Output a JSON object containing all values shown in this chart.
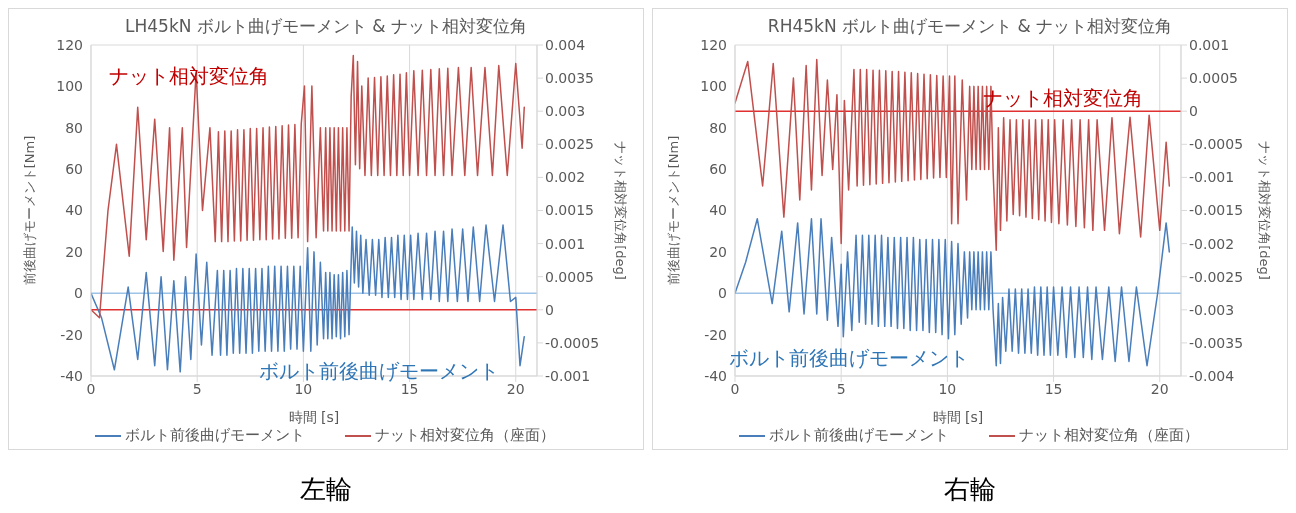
{
  "chart_data": [
    {
      "type": "line",
      "title": "LH45kN ボルト曲げモーメント & ナット相対変位角",
      "xlabel": "時間 [s]",
      "ylabel": "前後曲げモーメント[Nm]",
      "y2label": "ナット相対変位角[deg]",
      "xlim": [
        0,
        21
      ],
      "xticks": [
        0,
        5,
        10,
        15,
        20
      ],
      "ylim": [
        -40,
        120
      ],
      "yticks": [
        -40,
        -20,
        0,
        20,
        40,
        60,
        80,
        100,
        120
      ],
      "y2lim": [
        -0.001,
        0.004
      ],
      "y2ticks": [
        -0.001,
        -0.0005,
        0,
        0.0005,
        0.001,
        0.0015,
        0.002,
        0.0025,
        0.003,
        0.0035,
        0.004
      ],
      "grid": true,
      "legend": "bottom",
      "marker": "none",
      "line_style": "solid",
      "ref_lines": [
        {
          "axis": "y",
          "value": 0,
          "color": "#9dc3e6"
        },
        {
          "axis": "y2",
          "value": 0,
          "color": "#e03030"
        }
      ],
      "annotations": [
        "ナット相対変位角",
        "ボルト前後曲げモーメント",
        "左輪"
      ],
      "series": [
        {
          "name": "ボルト前後曲げモーメント",
          "color": "#4a7ebb",
          "x": [
            0,
            0.5,
            1.1,
            1.75,
            2.2,
            2.6,
            3.0,
            3.3,
            3.6,
            3.9,
            4.2,
            4.45,
            4.7,
            4.95,
            5.2,
            5.45,
            5.7,
            5.95,
            6.1,
            6.25,
            6.4,
            6.55,
            6.7,
            6.85,
            7.0,
            7.15,
            7.3,
            7.45,
            7.6,
            7.75,
            7.9,
            8.05,
            8.2,
            8.35,
            8.5,
            8.65,
            8.8,
            8.95,
            9.1,
            9.25,
            9.4,
            9.55,
            9.7,
            9.85,
            10.0,
            10.2,
            10.35,
            10.5,
            10.65,
            10.8,
            10.95,
            11.05,
            11.15,
            11.25,
            11.35,
            11.45,
            11.55,
            11.65,
            11.75,
            11.85,
            11.95,
            12.05,
            12.15,
            12.3,
            12.4,
            12.5,
            12.6,
            12.7,
            12.8,
            12.95,
            13.1,
            13.25,
            13.4,
            13.55,
            13.7,
            13.85,
            14.0,
            14.15,
            14.3,
            14.45,
            14.6,
            14.75,
            14.9,
            15.05,
            15.2,
            15.4,
            15.6,
            15.8,
            16.0,
            16.2,
            16.4,
            16.6,
            16.8,
            17.0,
            17.25,
            17.5,
            17.75,
            18.0,
            18.3,
            18.6,
            19.0,
            19.4,
            19.75,
            20.0,
            20.2,
            20.4
          ],
          "values": [
            0,
            -12,
            -37,
            3,
            -32,
            10,
            -35,
            8,
            -37,
            6,
            -38,
            8,
            -32,
            19,
            -25,
            15,
            -30,
            11,
            -30,
            11,
            -30,
            11,
            -29,
            12,
            -29,
            12,
            -29,
            12,
            -29,
            12,
            -28,
            12,
            -28,
            13,
            -28,
            13,
            -28,
            13,
            -28,
            13,
            -27,
            13,
            -27,
            13,
            -28,
            22,
            -28,
            20,
            -25,
            15,
            -22,
            10,
            -22,
            10,
            -22,
            9,
            -21,
            9,
            -22,
            10,
            -21,
            11,
            -20,
            32,
            5,
            30,
            3,
            28,
            0,
            26,
            -1,
            26,
            -1,
            26,
            -2,
            27,
            -2,
            27,
            -2,
            28,
            -3,
            28,
            -3,
            28,
            -3,
            29,
            -3,
            29,
            -3,
            30,
            -4,
            30,
            -4,
            31,
            -4,
            31,
            -4,
            32,
            -4,
            33,
            -4,
            33,
            -4,
            -2,
            -35,
            -21
          ]
        },
        {
          "name": "ナット相対変位角（座面）",
          "color": "#c0504d",
          "axis": "y2",
          "x": [
            0,
            0.4,
            0.8,
            1.2,
            1.8,
            2.2,
            2.6,
            3.0,
            3.4,
            3.7,
            3.9,
            4.3,
            4.5,
            4.95,
            5.25,
            5.6,
            5.85,
            6.0,
            6.15,
            6.3,
            6.45,
            6.6,
            6.75,
            6.9,
            7.05,
            7.2,
            7.35,
            7.5,
            7.65,
            7.8,
            7.95,
            8.1,
            8.25,
            8.4,
            8.55,
            8.7,
            8.85,
            9.0,
            9.15,
            9.3,
            9.45,
            9.6,
            9.75,
            9.9,
            10.05,
            10.2,
            10.4,
            10.6,
            10.8,
            10.95,
            11.05,
            11.15,
            11.25,
            11.35,
            11.45,
            11.55,
            11.65,
            11.75,
            11.85,
            11.95,
            12.05,
            12.15,
            12.25,
            12.35,
            12.45,
            12.55,
            12.65,
            12.75,
            12.9,
            13.05,
            13.2,
            13.35,
            13.5,
            13.65,
            13.8,
            13.95,
            14.1,
            14.25,
            14.4,
            14.55,
            14.7,
            14.85,
            15.0,
            15.2,
            15.4,
            15.6,
            15.8,
            16.0,
            16.2,
            16.4,
            16.6,
            16.8,
            17.0,
            17.3,
            17.6,
            17.9,
            18.2,
            18.55,
            18.9,
            19.2,
            19.6,
            20.0,
            20.3,
            20.4
          ],
          "values": [
            0,
            -0.00012,
            0.0015,
            0.0025,
            0.00081,
            0.00306,
            0.00106,
            0.00288,
            0.00088,
            0.00275,
            0.00075,
            0.00275,
            0.00094,
            0.0036,
            0.0015,
            0.00275,
            0.00103,
            0.00269,
            0.00103,
            0.0027,
            0.00103,
            0.0027,
            0.00104,
            0.00272,
            0.00104,
            0.00272,
            0.00105,
            0.00274,
            0.00105,
            0.00274,
            0.00106,
            0.00275,
            0.00106,
            0.00276,
            0.00107,
            0.00277,
            0.00107,
            0.00278,
            0.00108,
            0.00279,
            0.00108,
            0.0028,
            0.00109,
            0.00281,
            0.00338,
            0.00103,
            0.00338,
            0.00109,
            0.00275,
            0.00119,
            0.00275,
            0.00119,
            0.00275,
            0.00119,
            0.00275,
            0.00119,
            0.00275,
            0.00119,
            0.00275,
            0.00119,
            0.00275,
            0.00119,
            0.00322,
            0.00384,
            0.00219,
            0.00375,
            0.00213,
            0.00338,
            0.00203,
            0.0035,
            0.00203,
            0.00351,
            0.00203,
            0.00352,
            0.00203,
            0.00353,
            0.00203,
            0.00355,
            0.00203,
            0.00356,
            0.00203,
            0.00358,
            0.00203,
            0.00361,
            0.00203,
            0.00362,
            0.00203,
            0.00363,
            0.00203,
            0.00364,
            0.00203,
            0.00365,
            0.00203,
            0.00366,
            0.00203,
            0.00366,
            0.00203,
            0.00366,
            0.00203,
            0.00369,
            0.00203,
            0.00372,
            0.00244,
            0.00306
          ]
        }
      ]
    },
    {
      "type": "line",
      "title": "RH45kN ボルト曲げモーメント & ナット相対変位角",
      "xlabel": "時間 [s]",
      "ylabel": "前後曲げモーメント[Nm]",
      "y2label": "ナット相対変位角[deg]",
      "xlim": [
        0,
        21
      ],
      "xticks": [
        0,
        5,
        10,
        15,
        20
      ],
      "ylim": [
        -40,
        120
      ],
      "yticks": [
        -40,
        -20,
        0,
        20,
        40,
        60,
        80,
        100,
        120
      ],
      "y2lim": [
        -0.004,
        0.001
      ],
      "y2ticks": [
        -0.004,
        -0.0035,
        -0.003,
        -0.0025,
        -0.002,
        -0.0015,
        -0.001,
        -0.0005,
        0,
        0.0005,
        0.001
      ],
      "grid": true,
      "legend": "bottom",
      "marker": "none",
      "line_style": "solid",
      "ref_lines": [
        {
          "axis": "y",
          "value": 0,
          "color": "#9dc3e6"
        },
        {
          "axis": "y2",
          "value": 0,
          "color": "#e03030"
        }
      ],
      "annotations": [
        "ナット相対変位角",
        "ボルト前後曲げモーメント",
        "右輪"
      ],
      "series": [
        {
          "name": "ボルト前後曲げモーメント",
          "color": "#4a7ebb",
          "x": [
            0,
            0.5,
            1.05,
            1.75,
            2.2,
            2.55,
            2.95,
            3.25,
            3.6,
            3.85,
            4.05,
            4.35,
            4.55,
            4.85,
            5.0,
            5.1,
            5.3,
            5.5,
            5.7,
            5.85,
            6.0,
            6.15,
            6.3,
            6.45,
            6.6,
            6.75,
            6.9,
            7.05,
            7.2,
            7.35,
            7.5,
            7.65,
            7.8,
            7.95,
            8.1,
            8.25,
            8.4,
            8.55,
            8.7,
            8.85,
            9.0,
            9.15,
            9.3,
            9.45,
            9.6,
            9.75,
            9.9,
            10.05,
            10.2,
            10.35,
            10.5,
            10.65,
            10.8,
            10.95,
            11.05,
            11.15,
            11.25,
            11.35,
            11.45,
            11.55,
            11.65,
            11.75,
            11.85,
            11.95,
            12.05,
            12.15,
            12.3,
            12.4,
            12.5,
            12.6,
            12.75,
            12.9,
            13.05,
            13.2,
            13.35,
            13.5,
            13.65,
            13.8,
            13.95,
            14.1,
            14.25,
            14.4,
            14.55,
            14.7,
            14.85,
            15.0,
            15.2,
            15.4,
            15.6,
            15.8,
            16.0,
            16.2,
            16.4,
            16.6,
            16.8,
            17.0,
            17.3,
            17.6,
            17.9,
            18.2,
            18.55,
            18.9,
            19.4,
            19.9,
            20.3,
            20.45
          ],
          "values": [
            0,
            15,
            36,
            -5,
            30,
            -9,
            34,
            -10,
            36,
            -10,
            36,
            -13,
            27,
            -16,
            14,
            -21,
            20,
            -18,
            28,
            -14,
            28,
            -15,
            28,
            -15,
            28,
            -16,
            28,
            -16,
            27,
            -16,
            27,
            -17,
            27,
            -17,
            27,
            -18,
            27,
            -18,
            26,
            -18,
            26,
            -19,
            26,
            -19,
            26,
            -20,
            26,
            -22,
            25,
            -20,
            24,
            -15,
            20,
            -12,
            20,
            -8,
            20,
            -8,
            20,
            -8,
            20,
            -8,
            20,
            -8,
            20,
            -8,
            -35,
            -5,
            -34,
            -2,
            -28,
            2,
            -28,
            2,
            -29,
            2,
            -29,
            2,
            -29,
            3,
            -30,
            3,
            -30,
            3,
            -30,
            3,
            -30,
            3,
            -31,
            3,
            -31,
            3,
            -31,
            3,
            -32,
            3,
            -32,
            3,
            -33,
            3,
            -33,
            3,
            -35,
            0,
            34,
            20
          ]
        },
        {
          "name": "ナット相対変位角（座面）",
          "color": "#c0504d",
          "axis": "y2",
          "x": [
            0,
            0.6,
            1.3,
            1.8,
            2.3,
            2.75,
            3.05,
            3.35,
            3.6,
            3.85,
            4.1,
            4.35,
            4.6,
            4.8,
            5.0,
            5.15,
            5.35,
            5.6,
            5.75,
            5.9,
            6.05,
            6.2,
            6.35,
            6.5,
            6.65,
            6.8,
            6.95,
            7.1,
            7.25,
            7.4,
            7.55,
            7.7,
            7.85,
            8.0,
            8.15,
            8.3,
            8.45,
            8.6,
            8.75,
            8.9,
            9.05,
            9.2,
            9.35,
            9.5,
            9.65,
            9.8,
            9.95,
            10.1,
            10.2,
            10.35,
            10.5,
            10.7,
            10.9,
            11.05,
            11.15,
            11.25,
            11.35,
            11.45,
            11.55,
            11.65,
            11.75,
            11.85,
            11.95,
            12.05,
            12.15,
            12.3,
            12.4,
            12.5,
            12.65,
            12.8,
            12.95,
            13.1,
            13.25,
            13.4,
            13.55,
            13.7,
            13.85,
            14.0,
            14.15,
            14.3,
            14.45,
            14.6,
            14.75,
            14.9,
            15.05,
            15.25,
            15.45,
            15.65,
            15.85,
            16.05,
            16.25,
            16.45,
            16.65,
            16.85,
            17.05,
            17.4,
            17.75,
            18.1,
            18.6,
            19.1,
            19.5,
            20.0,
            20.3,
            20.45
          ],
          "values": [
            0.000125,
            0.00075,
            -0.00113,
            0.00072,
            -0.0016,
            0.0005,
            -0.00134,
            0.00069,
            -0.00119,
            0.00078,
            -0.00097,
            0.00047,
            -0.00088,
            0.00025,
            -0.002,
            0.00016,
            -0.00119,
            0.00063,
            -0.00113,
            0.00063,
            -0.00112,
            0.00063,
            -0.00111,
            0.00062,
            -0.0011,
            0.00062,
            -0.00109,
            0.00061,
            -0.00108,
            0.0006,
            -0.00107,
            0.0006,
            -0.00106,
            0.00059,
            -0.00105,
            0.00058,
            -0.00104,
            0.00057,
            -0.00103,
            0.00056,
            -0.00102,
            0.00055,
            -0.00101,
            0.00054,
            -0.001,
            0.00053,
            -0.001,
            0.00053,
            -0.0017,
            0.00053,
            -0.0017,
            0.00047,
            -0.00134,
            0.000375,
            -0.00088,
            0.000375,
            -0.00088,
            0.000375,
            -0.00088,
            0.000375,
            -0.00088,
            0.000375,
            -0.00088,
            0.000375,
            -0.00088,
            -0.0021,
            -0.00025,
            -0.0018,
            -0.0001,
            -0.00166,
            -0.00013,
            -0.00156,
            -0.00013,
            -0.00158,
            -0.00013,
            -0.0016,
            -0.00013,
            -0.00162,
            -0.00013,
            -0.00164,
            -0.00013,
            -0.00166,
            -0.00013,
            -0.00168,
            -0.00013,
            -0.0017,
            -0.00013,
            -0.00172,
            -0.00013,
            -0.00174,
            -0.00013,
            -0.00176,
            -0.00013,
            -0.0018,
            -0.00013,
            -0.0018,
            -0.0001,
            -0.00185,
            -9e-05,
            -0.0019,
            -6e-05,
            -0.0018,
            -0.00047,
            -0.00113
          ]
        }
      ]
    }
  ]
}
